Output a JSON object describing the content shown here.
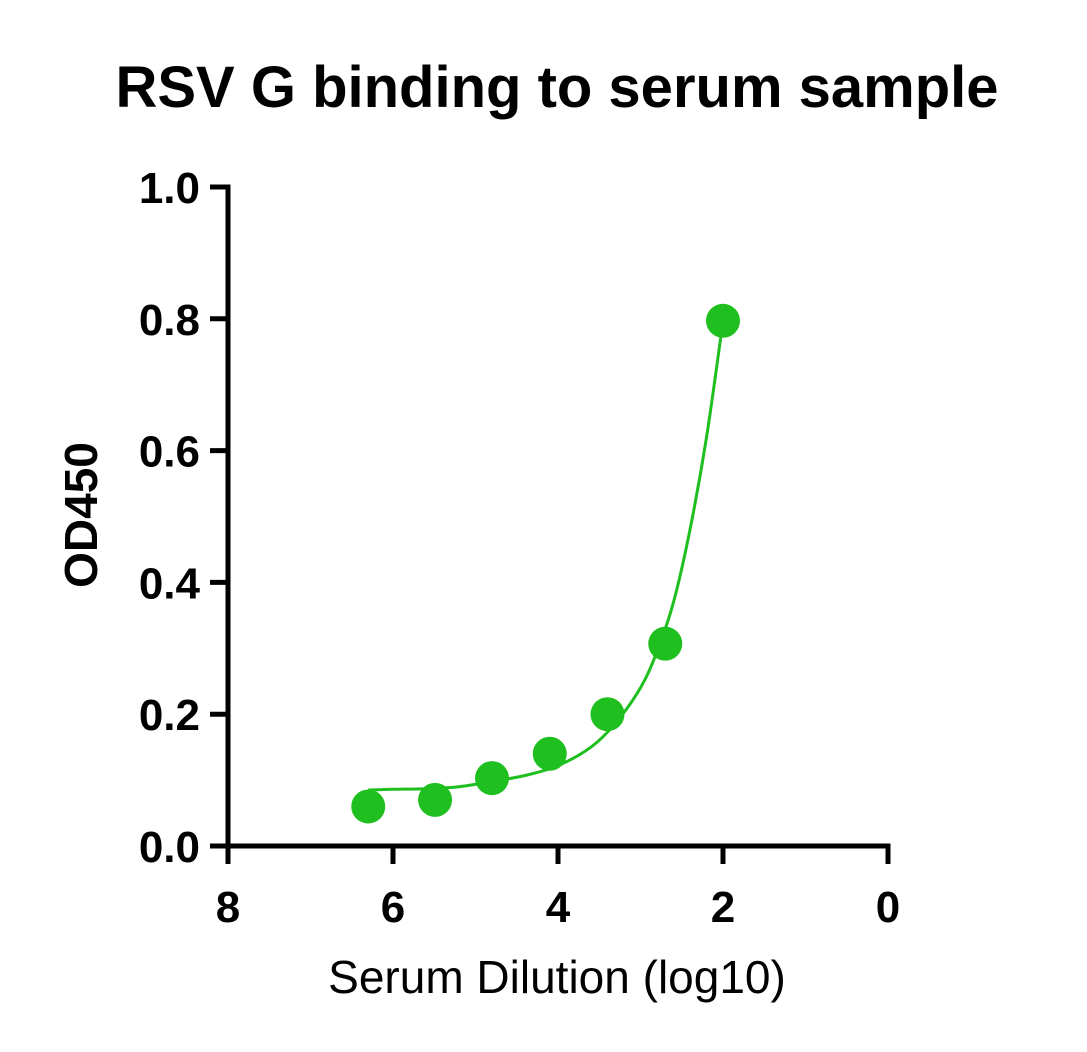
{
  "chart_data": {
    "type": "scatter",
    "title": "RSV G binding to serum sample",
    "xlabel": "Serum Dilution (log10)",
    "ylabel": "OD450",
    "xlim": [
      8,
      0
    ],
    "ylim": [
      0,
      1.0
    ],
    "x_reversed": true,
    "x_ticks": [
      8,
      6,
      4,
      2,
      0
    ],
    "x_tick_labels": [
      "8",
      "6",
      "4",
      "2",
      "0"
    ],
    "y_ticks": [
      0,
      0.2,
      0.4,
      0.6,
      0.8,
      1.0
    ],
    "y_tick_labels": [
      "0.0",
      "0.2",
      "0.4",
      "0.6",
      "0.8",
      "1.0"
    ],
    "grid": false,
    "color": "#1fbf1f",
    "series": [
      {
        "x": [
          6.3,
          5.49,
          4.8,
          4.1,
          3.4,
          2.7,
          2.0
        ],
        "y": [
          0.06,
          0.07,
          0.103,
          0.14,
          0.2,
          0.307,
          0.797
        ]
      }
    ],
    "fit_curve": {
      "x": [
        6.3,
        6.0,
        5.6,
        5.2,
        4.8,
        4.4,
        4.0,
        3.6,
        3.3,
        3.0,
        2.8,
        2.6,
        2.4,
        2.2,
        2.0
      ],
      "y": [
        0.085,
        0.086,
        0.087,
        0.09,
        0.098,
        0.107,
        0.122,
        0.15,
        0.187,
        0.24,
        0.295,
        0.37,
        0.48,
        0.62,
        0.797
      ]
    }
  }
}
